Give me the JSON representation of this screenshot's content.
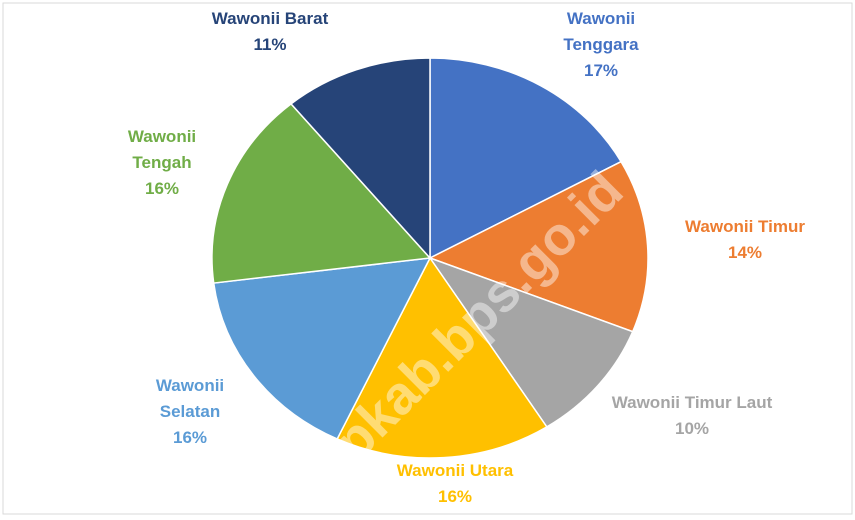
{
  "chart_data": {
    "type": "pie",
    "categories": [
      "Wawonii Tenggara",
      "Wawonii Timur",
      "Wawonii Timur Laut",
      "Wawonii Utara",
      "Wawonii Selatan",
      "Wawonii Tengah",
      "Wawonii Barat"
    ],
    "values": [
      17,
      14,
      10,
      16,
      16,
      16,
      11
    ],
    "value_labels": [
      "17%",
      "14%",
      "10%",
      "16%",
      "16%",
      "16%",
      "11%"
    ],
    "colors": [
      "#4472c4",
      "#ed7d31",
      "#a5a5a5",
      "#ffc000",
      "#5b9bd5",
      "#70ad47",
      "#264478"
    ],
    "watermark": "kepkab.bps.go.id"
  }
}
